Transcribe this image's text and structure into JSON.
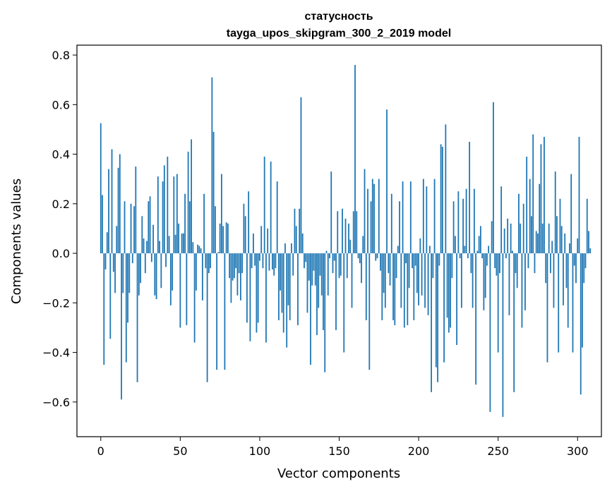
{
  "chart_data": {
    "type": "bar",
    "title_line1": "статусность",
    "title_line2": "tayga_upos_skipgram_300_2_2019 model",
    "xlabel": "Vector components",
    "ylabel": "Components values",
    "xlim": [
      -15,
      315
    ],
    "ylim": [
      -0.74,
      0.84
    ],
    "x_ticks": [
      0,
      50,
      100,
      150,
      200,
      250,
      300
    ],
    "x_tick_labels": [
      "0",
      "50",
      "100",
      "150",
      "200",
      "250",
      "300"
    ],
    "y_ticks": [
      -0.6,
      -0.4,
      -0.2,
      0.0,
      0.2,
      0.4,
      0.6,
      0.8
    ],
    "y_tick_labels": [
      "−0.6",
      "−0.4",
      "−0.2",
      "0.0",
      "0.2",
      "0.4",
      "0.6",
      "0.8"
    ],
    "bar_color": "#1f77b4",
    "values": [
      0.525,
      0.235,
      -0.45,
      -0.065,
      0.085,
      0.34,
      -0.345,
      0.42,
      -0.075,
      -0.16,
      0.11,
      0.345,
      0.4,
      -0.59,
      -0.16,
      0.21,
      -0.44,
      -0.28,
      -0.16,
      0.2,
      -0.04,
      0.19,
      0.35,
      -0.52,
      -0.17,
      -0.12,
      0.15,
      0.06,
      -0.08,
      0.05,
      0.21,
      0.23,
      -0.035,
      0.115,
      -0.17,
      -0.185,
      0.31,
      0.05,
      -0.14,
      0.29,
      0.355,
      -0.055,
      0.39,
      0.07,
      -0.21,
      -0.15,
      0.31,
      0.075,
      0.32,
      0.12,
      -0.3,
      0.08,
      0.08,
      0.24,
      -0.29,
      0.41,
      0.21,
      0.46,
      0.045,
      -0.36,
      -0.15,
      0.035,
      0.03,
      0.02,
      -0.19,
      0.24,
      -0.06,
      -0.52,
      -0.08,
      -0.06,
      0.71,
      0.49,
      0.19,
      -0.47,
      0.005,
      0.12,
      0.32,
      0.11,
      -0.47,
      0.125,
      0.12,
      -0.1,
      -0.2,
      -0.11,
      -0.1,
      -0.06,
      -0.17,
      -0.08,
      -0.19,
      -0.08,
      0.2,
      0.15,
      -0.28,
      0.25,
      -0.355,
      -0.06,
      0.08,
      -0.05,
      -0.32,
      -0.28,
      -0.03,
      0.11,
      -0.06,
      0.39,
      -0.36,
      0.1,
      -0.07,
      0.37,
      -0.065,
      -0.09,
      -0.06,
      0.29,
      -0.27,
      -0.15,
      -0.24,
      -0.32,
      0.04,
      -0.38,
      -0.21,
      -0.27,
      0.04,
      -0.09,
      0.18,
      0.11,
      -0.29,
      0.18,
      0.63,
      0.08,
      -0.06,
      -0.035,
      -0.24,
      -0.11,
      -0.45,
      -0.13,
      -0.07,
      -0.13,
      -0.33,
      -0.22,
      -0.09,
      -0.17,
      -0.31,
      -0.48,
      0.01,
      -0.17,
      -0.02,
      0.33,
      -0.08,
      -0.03,
      -0.31,
      0.17,
      -0.1,
      -0.09,
      0.18,
      -0.4,
      0.14,
      -0.1,
      0.12,
      0.055,
      -0.22,
      0.17,
      0.76,
      0.17,
      -0.02,
      -0.04,
      -0.12,
      0.07,
      0.34,
      -0.27,
      0.26,
      -0.47,
      0.21,
      0.3,
      0.28,
      -0.03,
      -0.02,
      0.3,
      -0.07,
      -0.27,
      -0.16,
      -0.22,
      0.58,
      -0.08,
      -0.13,
      0.24,
      -0.27,
      -0.29,
      -0.1,
      0.03,
      0.21,
      -0.22,
      0.29,
      -0.3,
      -0.04,
      -0.29,
      -0.14,
      0.29,
      -0.06,
      -0.27,
      -0.05,
      -0.16,
      -0.21,
      0.06,
      -0.17,
      0.3,
      -0.22,
      0.27,
      -0.25,
      0.03,
      -0.56,
      -0.1,
      0.3,
      -0.46,
      -0.52,
      -0.05,
      0.44,
      0.43,
      -0.44,
      0.52,
      -0.26,
      -0.32,
      -0.3,
      -0.1,
      0.21,
      0.07,
      -0.37,
      0.25,
      -0.02,
      -0.22,
      0.22,
      0.03,
      0.26,
      -0.02,
      0.45,
      -0.08,
      -0.22,
      0.26,
      -0.53,
      0.01,
      0.07,
      0.11,
      -0.02,
      -0.23,
      -0.18,
      -0.05,
      0.03,
      -0.64,
      0.13,
      0.61,
      -0.06,
      -0.09,
      -0.4,
      -0.08,
      0.27,
      -0.66,
      0.1,
      -0.02,
      0.14,
      -0.25,
      0.12,
      0.01,
      -0.56,
      -0.08,
      -0.14,
      0.24,
      0.12,
      -0.3,
      0.2,
      -0.23,
      0.39,
      -0.06,
      0.3,
      0.15,
      0.48,
      -0.08,
      0.09,
      0.08,
      0.28,
      0.44,
      0.12,
      0.47,
      -0.12,
      -0.44,
      0.12,
      -0.08,
      0.05,
      -0.22,
      0.33,
      0.15,
      -0.4,
      0.22,
      0.11,
      -0.21,
      0.08,
      -0.14,
      -0.3,
      0.04,
      0.32,
      -0.4,
      -0.05,
      -0.12,
      0.06,
      0.47,
      -0.57,
      -0.38,
      -0.12,
      -0.06,
      0.22,
      0.09,
      0.02
    ]
  }
}
